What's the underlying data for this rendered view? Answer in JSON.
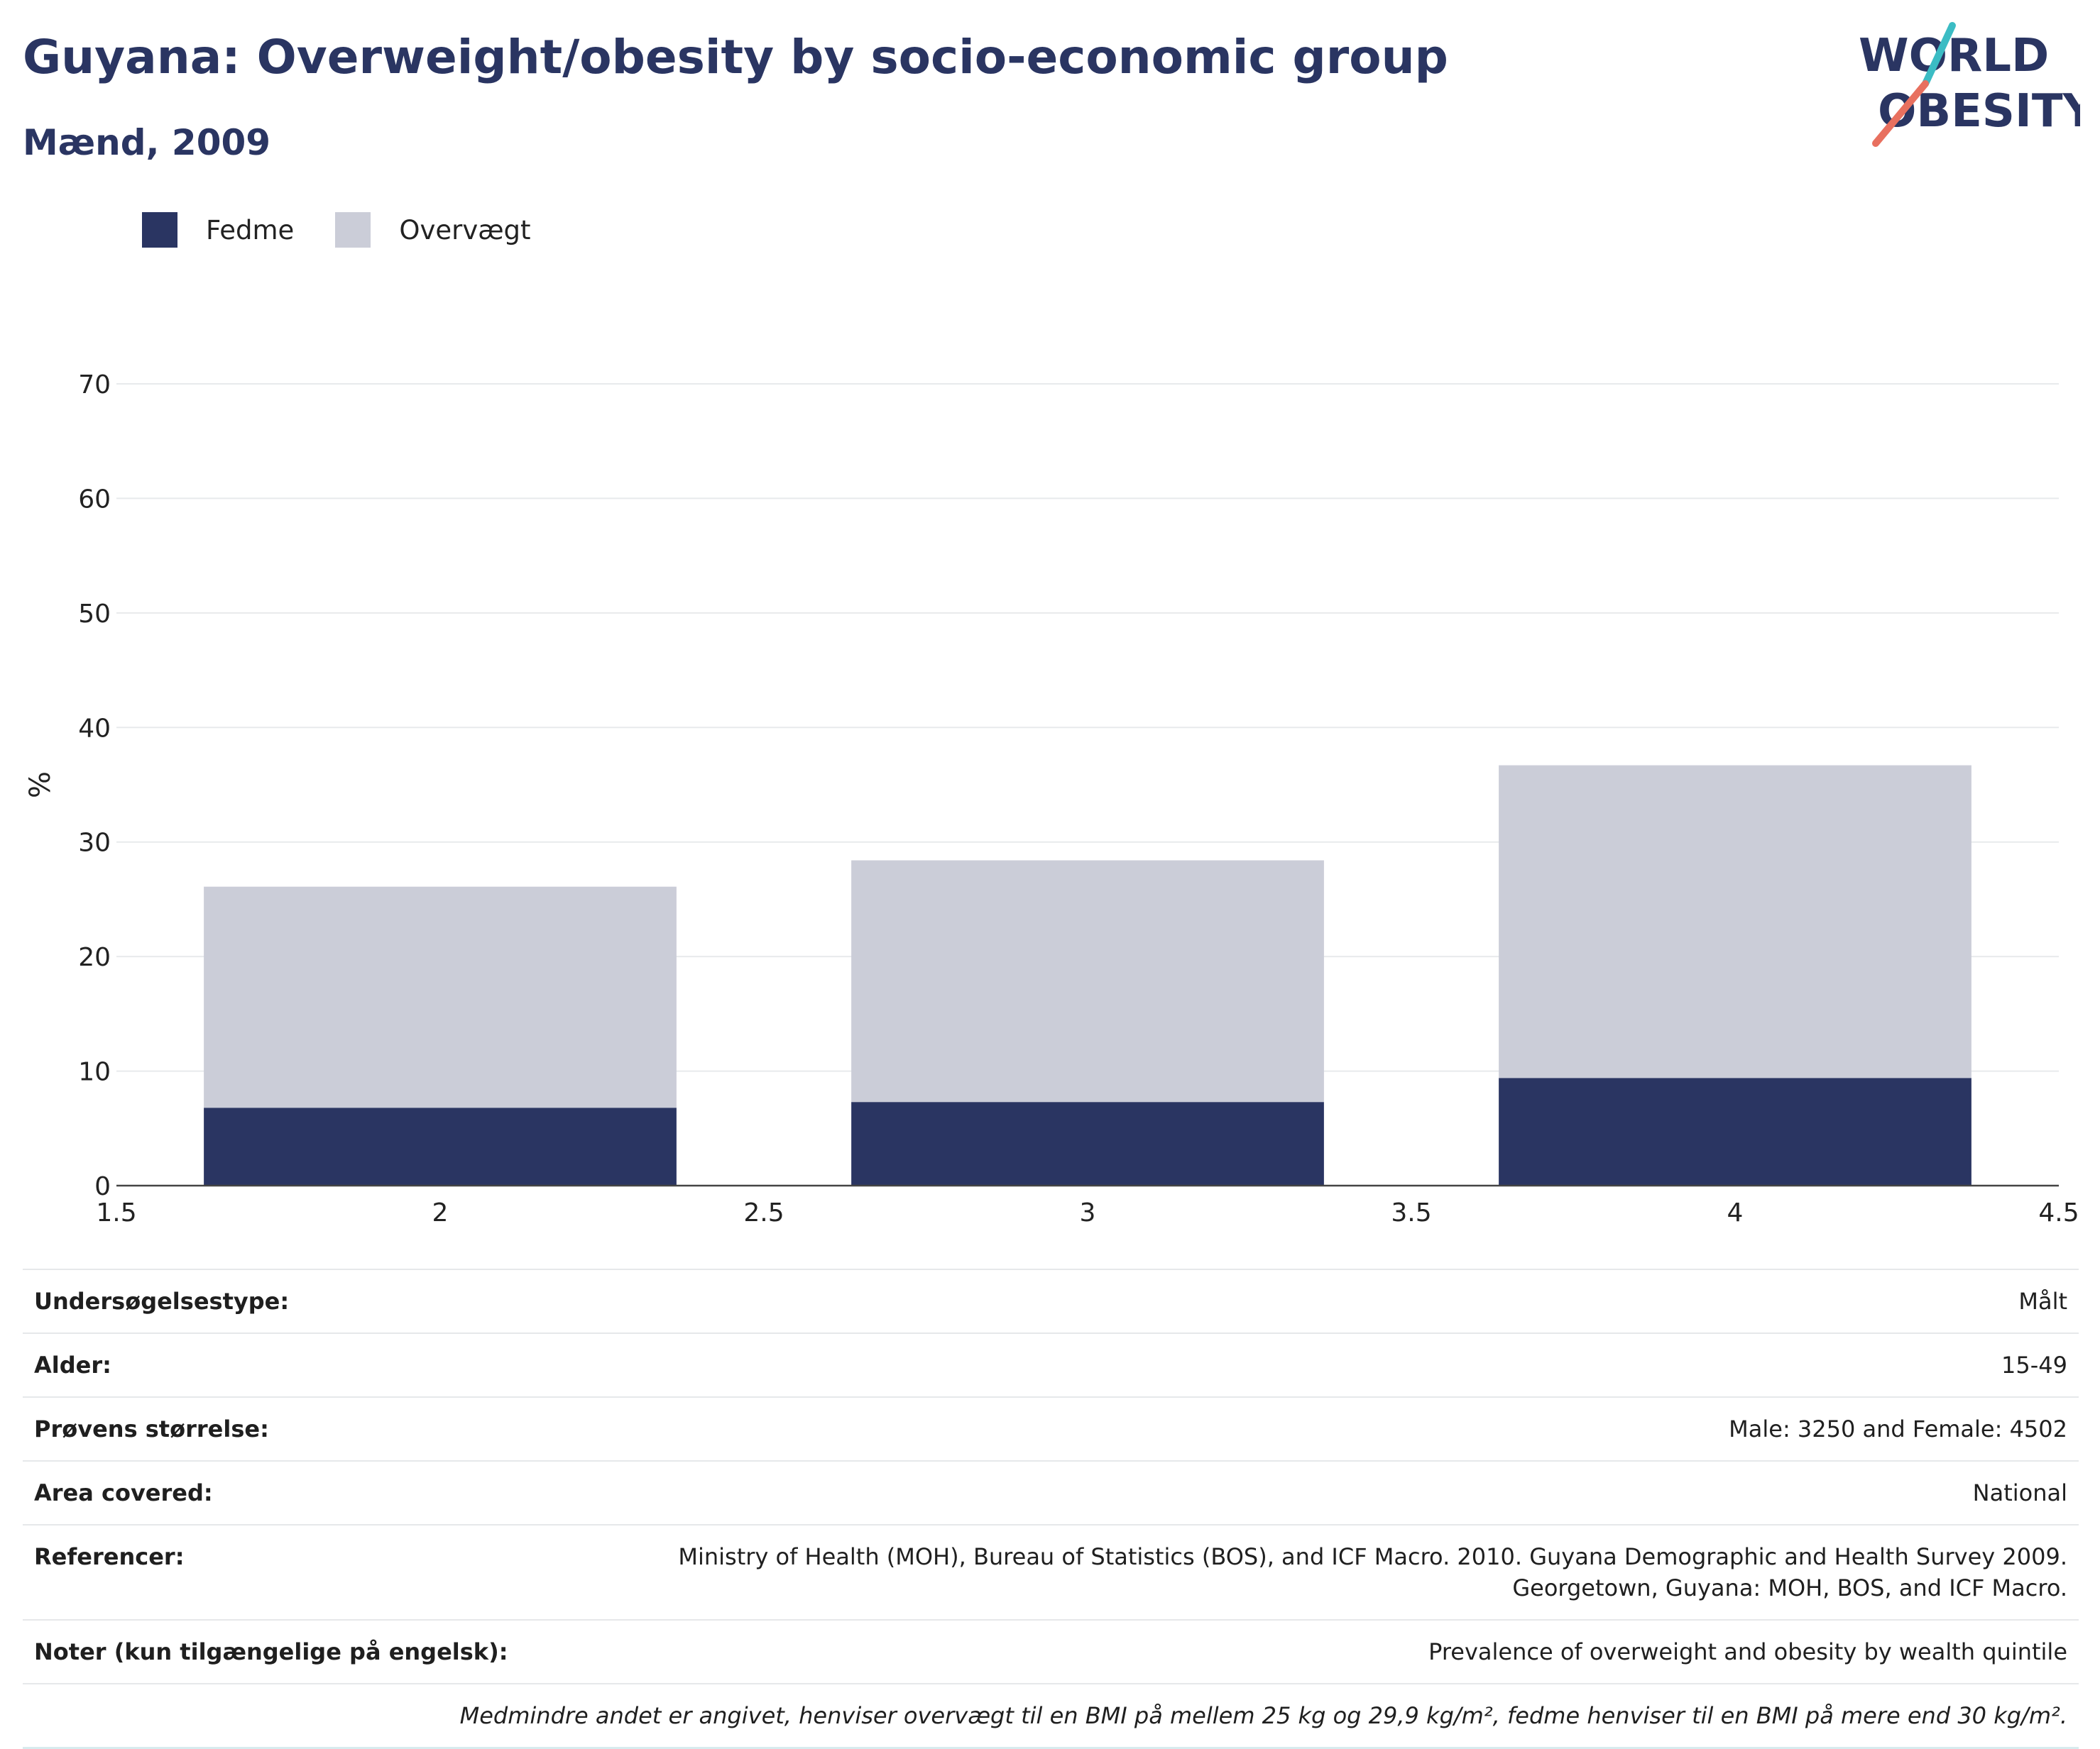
{
  "header": {
    "title": "Guyana: Overweight/obesity by socio-economic group",
    "subtitle": "Mænd, 2009"
  },
  "logo": {
    "line1": "WORLD",
    "line2": "OBESITY",
    "accent_teal": "#3bbcc4",
    "accent_coral": "#e8705f",
    "text_color": "#2a3562"
  },
  "legend": [
    {
      "label": "Fedme",
      "color": "#2a3562"
    },
    {
      "label": "Overvægt",
      "color": "#cbcdd8"
    }
  ],
  "chart_data": {
    "type": "bar",
    "stacked": true,
    "title": "Guyana: Overweight/obesity by socio-economic group",
    "subtitle": "Mænd, 2009",
    "xlabel": "",
    "ylabel": "%",
    "x": [
      2,
      3,
      4
    ],
    "xlim": [
      1.5,
      4.5
    ],
    "xticks": [
      "1.5",
      "2",
      "2.5",
      "3",
      "3.5",
      "4",
      "4.5"
    ],
    "ylim": [
      0,
      70
    ],
    "yticks": [
      0,
      10,
      20,
      30,
      40,
      50,
      60,
      70
    ],
    "grid": true,
    "legend_position": "top-left",
    "series": [
      {
        "name": "Fedme",
        "color": "#2a3562",
        "values": [
          6.8,
          7.3,
          9.4
        ]
      },
      {
        "name": "Overvægt",
        "color": "#cbcdd8",
        "values": [
          19.3,
          21.1,
          27.3
        ]
      }
    ]
  },
  "info": {
    "survey_type": {
      "label": "Undersøgelsestype:",
      "value": "Målt"
    },
    "age": {
      "label": "Alder:",
      "value": "15-49"
    },
    "sample_size": {
      "label": "Prøvens størrelse:",
      "value": "Male: 3250 and Female: 4502"
    },
    "area": {
      "label": "Area covered:",
      "value": "National"
    },
    "references": {
      "label": "Referencer:",
      "value": "Ministry of Health (MOH), Bureau of Statistics (BOS), and ICF Macro. 2010. Guyana Demographic and Health Survey 2009. Georgetown, Guyana: MOH, BOS, and ICF Macro."
    },
    "notes": {
      "label": "Noter (kun tilgængelige på engelsk):",
      "value": "Prevalence of overweight and obesity by wealth quintile"
    },
    "footnote": "Medmindre andet er angivet, henviser overvægt til en BMI på mellem 25 kg og 29,9 kg/m², fedme henviser til en BMI på mere end 30 kg/m²."
  }
}
